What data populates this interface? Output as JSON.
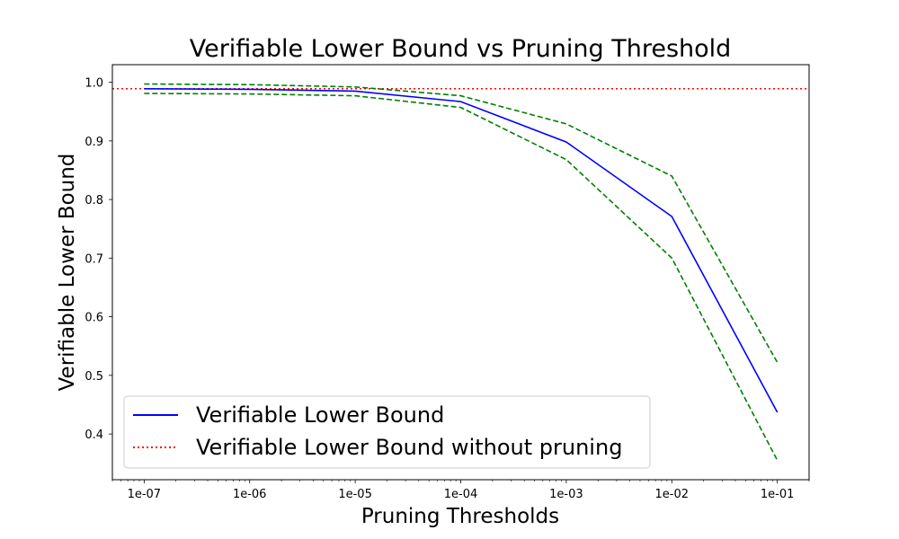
{
  "chart_data": {
    "type": "line",
    "title": "Verifiable Lower Bound vs Pruning Threshold",
    "xlabel": "Pruning Thresholds",
    "ylabel": "Verifiable Lower Bound",
    "xscale": "log",
    "x": [
      1e-07,
      1e-06,
      1e-05,
      0.0001,
      0.001,
      0.01,
      0.1
    ],
    "x_tick_labels": [
      "1e-07",
      "1e-06",
      "1e-05",
      "1e-04",
      "1e-03",
      "1e-02",
      "1e-01"
    ],
    "xlim": [
      5e-08,
      0.2
    ],
    "y_ticks": [
      0.4,
      0.5,
      0.6,
      0.7,
      0.8,
      0.9,
      1.0
    ],
    "y_tick_labels": [
      "0.4",
      "0.5",
      "0.6",
      "0.7",
      "0.8",
      "0.9",
      "1.0"
    ],
    "ylim": [
      0.322,
      1.03
    ],
    "grid": false,
    "legend_position": "lower-left",
    "series": [
      {
        "name": "Verifiable Lower Bound",
        "color": "#0000ff",
        "style": "solid",
        "in_legend": true,
        "values": [
          0.989,
          0.988,
          0.985,
          0.967,
          0.898,
          0.771,
          0.437
        ]
      },
      {
        "name": "",
        "color": "#008000",
        "style": "dashed",
        "in_legend": false,
        "values": [
          0.997,
          0.996,
          0.992,
          0.977,
          0.929,
          0.84,
          0.522
        ]
      },
      {
        "name": "",
        "color": "#008000",
        "style": "dashed",
        "in_legend": false,
        "values": [
          0.981,
          0.98,
          0.977,
          0.957,
          0.868,
          0.7,
          0.355
        ]
      }
    ],
    "reference_lines": [
      {
        "name": "Verifiable Lower Bound without pruning",
        "color": "#ff0000",
        "style": "dotted",
        "y": 0.989
      }
    ]
  }
}
